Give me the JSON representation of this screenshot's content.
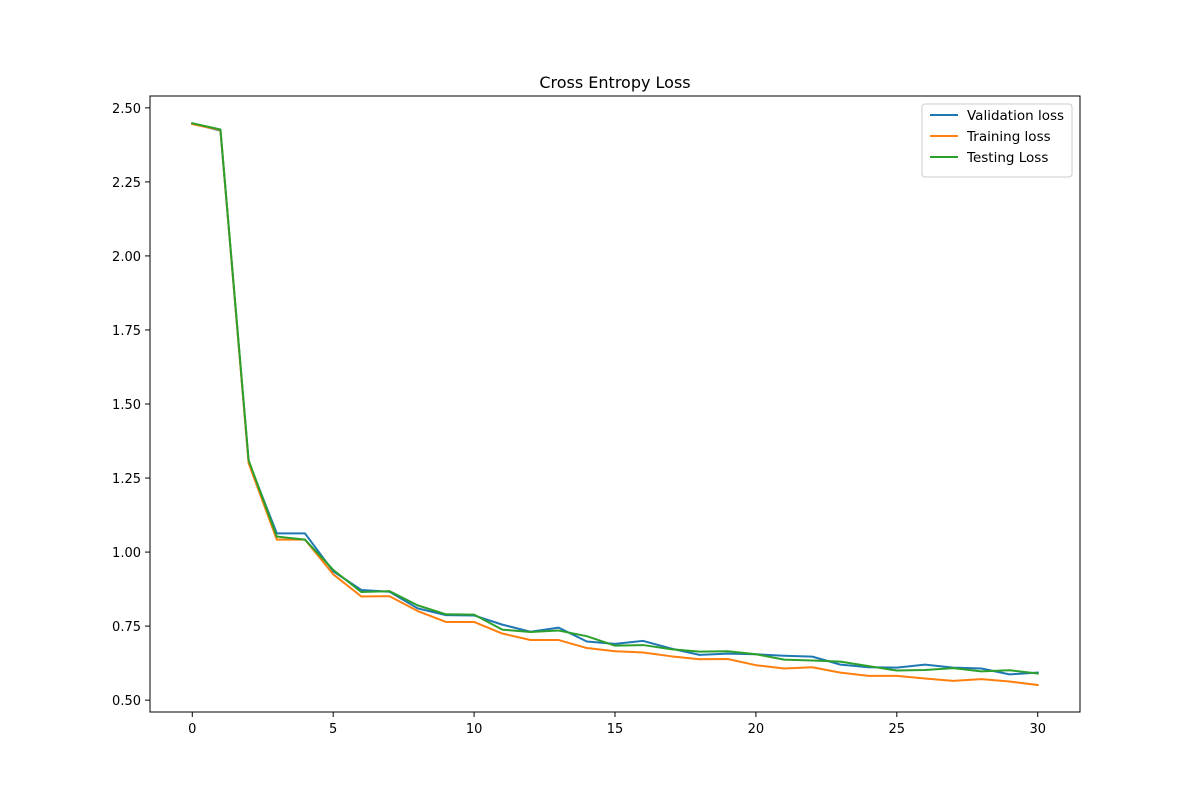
{
  "chart_data": {
    "type": "line",
    "title": "Cross Entropy Loss",
    "xlabel": "",
    "ylabel": "",
    "xlim": [
      -1.5,
      31.5
    ],
    "ylim": [
      0.46,
      2.54
    ],
    "xticks": [
      0,
      5,
      10,
      15,
      20,
      25,
      30
    ],
    "yticks": [
      0.5,
      0.75,
      1.0,
      1.25,
      1.5,
      1.75,
      2.0,
      2.25,
      2.5
    ],
    "ytick_labels": [
      "0.50",
      "0.75",
      "1.00",
      "1.25",
      "1.50",
      "1.75",
      "2.00",
      "2.25",
      "2.50"
    ],
    "grid": false,
    "legend_position": "top-right",
    "x": [
      0,
      1,
      2,
      3,
      4,
      5,
      6,
      7,
      8,
      9,
      10,
      11,
      12,
      13,
      14,
      15,
      16,
      17,
      18,
      19,
      20,
      21,
      22,
      23,
      24,
      25,
      26,
      27,
      28,
      29,
      30
    ],
    "series": [
      {
        "name": "Validation loss",
        "color": "#1f77b4",
        "values": [
          2.447,
          2.423,
          1.305,
          1.063,
          1.063,
          0.935,
          0.872,
          0.866,
          0.81,
          0.787,
          0.786,
          0.755,
          0.731,
          0.745,
          0.698,
          0.69,
          0.7,
          0.674,
          0.653,
          0.657,
          0.655,
          0.65,
          0.647,
          0.62,
          0.611,
          0.61,
          0.62,
          0.61,
          0.607,
          0.587,
          0.593
        ]
      },
      {
        "name": "Training loss",
        "color": "#ff7f0e",
        "values": [
          2.445,
          2.425,
          1.3,
          1.042,
          1.042,
          0.925,
          0.85,
          0.851,
          0.801,
          0.764,
          0.764,
          0.725,
          0.703,
          0.703,
          0.676,
          0.665,
          0.661,
          0.648,
          0.638,
          0.639,
          0.618,
          0.607,
          0.611,
          0.593,
          0.582,
          0.582,
          0.573,
          0.565,
          0.571,
          0.563,
          0.551
        ]
      },
      {
        "name": "Testing Loss",
        "color": "#2ca02c",
        "values": [
          2.448,
          2.427,
          1.31,
          1.052,
          1.042,
          0.94,
          0.865,
          0.868,
          0.82,
          0.79,
          0.789,
          0.738,
          0.73,
          0.735,
          0.716,
          0.684,
          0.686,
          0.672,
          0.664,
          0.665,
          0.655,
          0.637,
          0.634,
          0.63,
          0.615,
          0.6,
          0.602,
          0.608,
          0.597,
          0.601,
          0.59
        ]
      }
    ]
  }
}
